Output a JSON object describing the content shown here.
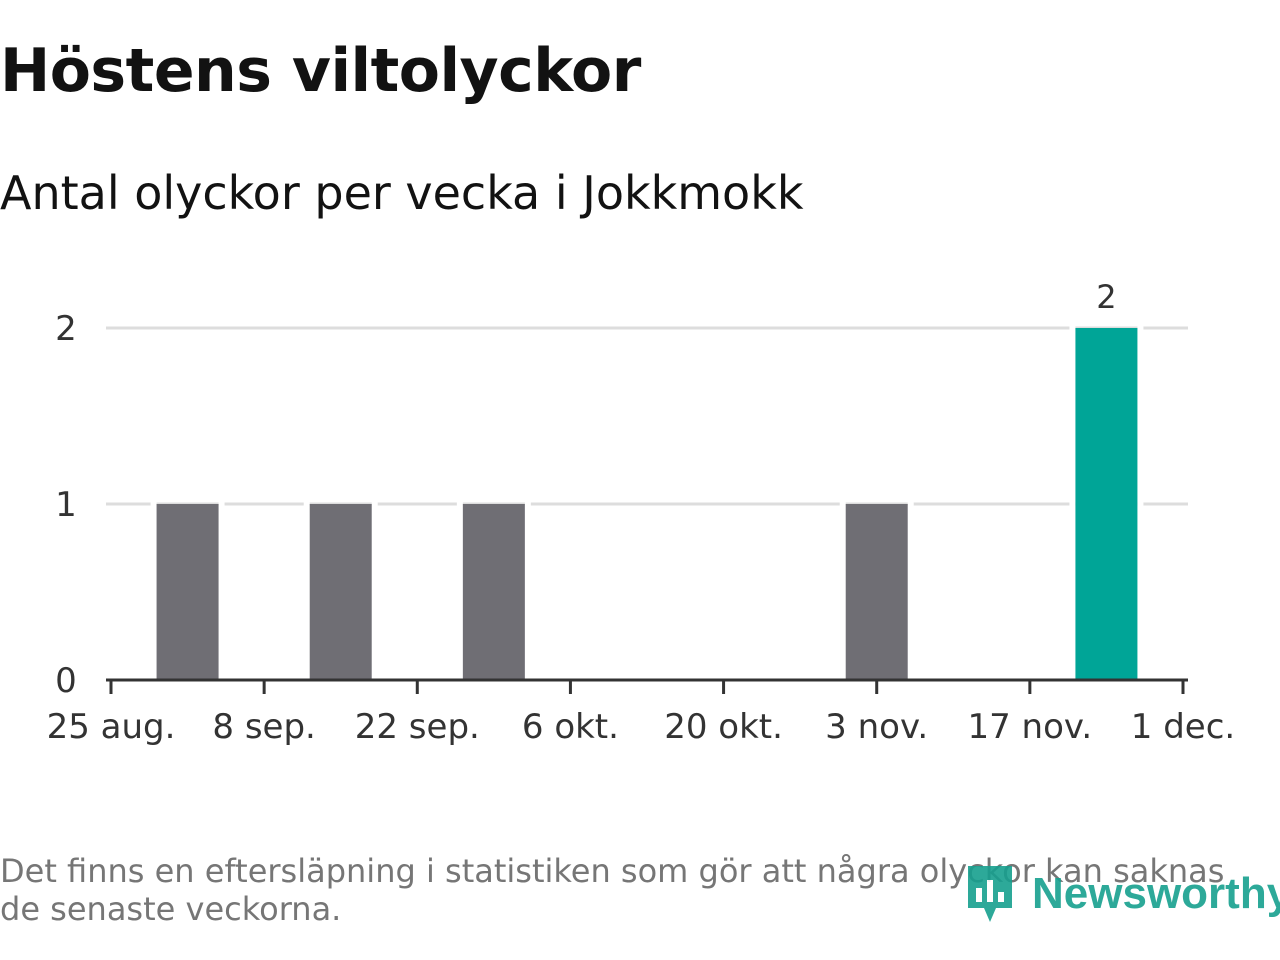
{
  "header": {
    "title": "Höstens viltolyckor",
    "subtitle": "Antal olyckor per vecka i Jokkmokk"
  },
  "chart_data": {
    "type": "bar",
    "x": [
      "2025-09-01",
      "2025-09-15",
      "2025-09-29",
      "2025-11-03",
      "2025-11-24"
    ],
    "values": [
      1,
      1,
      1,
      1,
      2
    ],
    "highlight_index": 4,
    "data_labels": [
      null,
      null,
      null,
      null,
      "2"
    ],
    "xlim": [
      "2025-08-25",
      "2025-12-01"
    ],
    "ylim": [
      0,
      2
    ],
    "x_ticks": [
      "25 aug.",
      "8 sep.",
      "22 sep.",
      "6 okt.",
      "20 okt.",
      "3 nov.",
      "17 nov.",
      "1 dec."
    ],
    "y_ticks": [
      "0",
      "1",
      "2"
    ],
    "grid": true,
    "colors": {
      "bar": "#6f6e74",
      "highlight": "#00a597",
      "grid": "#dddddd",
      "axis": "#333333"
    }
  },
  "footer": {
    "note": "Det finns en eftersläpning i statistiken som gör att några olyckor kan saknas de senaste veckorna.",
    "brand": "Newsworthy",
    "brand_icon": "chart-bubble-icon"
  }
}
